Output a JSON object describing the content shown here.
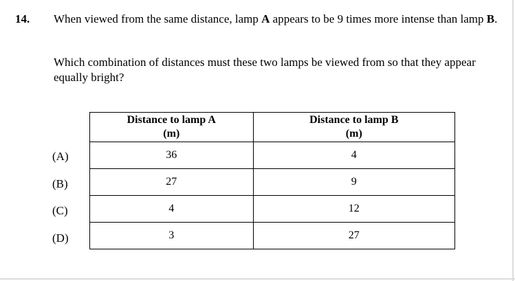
{
  "question": {
    "number": "14.",
    "stem_part1": "When viewed from the same distance, lamp ",
    "stem_lamp_a": "A",
    "stem_part2": " appears to be 9 times more intense than lamp ",
    "stem_lamp_b": "B",
    "stem_part3": ".",
    "prompt": "Which combination of distances must these two lamps be viewed from so that they appear equally bright?"
  },
  "table": {
    "headers": [
      {
        "line1": "Distance to lamp A",
        "line2": "(m)"
      },
      {
        "line1": "Distance to lamp B",
        "line2": "(m)"
      }
    ],
    "rows": [
      {
        "option": "(A)",
        "a": "36",
        "b": "4"
      },
      {
        "option": "(B)",
        "a": "27",
        "b": "9"
      },
      {
        "option": "(C)",
        "a": "4",
        "b": "12"
      },
      {
        "option": "(D)",
        "a": "3",
        "b": "27"
      }
    ]
  }
}
